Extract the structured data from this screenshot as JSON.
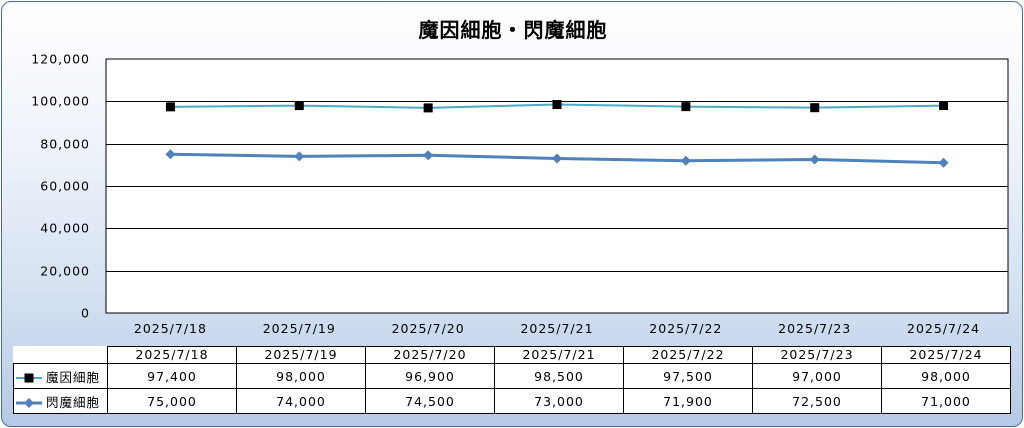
{
  "chart_data": {
    "type": "line",
    "title": "魔因細胞・閃魔細胞",
    "categories": [
      "2025/7/18",
      "2025/7/19",
      "2025/7/20",
      "2025/7/21",
      "2025/7/22",
      "2025/7/23",
      "2025/7/24"
    ],
    "series": [
      {
        "name": "魔因細胞",
        "values": [
          97400,
          98000,
          96900,
          98500,
          97500,
          97000,
          98000
        ],
        "color": "#4bacc6",
        "marker": "square",
        "marker_color": "#000000"
      },
      {
        "name": "閃魔細胞",
        "values": [
          75000,
          74000,
          74500,
          73000,
          71900,
          72500,
          71000
        ],
        "color": "#4f81bd",
        "marker": "diamond",
        "marker_color": "#4f81bd"
      }
    ],
    "ylim": [
      0,
      120000
    ],
    "yticks": [
      "0",
      "20,000",
      "40,000",
      "60,000",
      "80,000",
      "100,000",
      "120,000"
    ],
    "grid": true,
    "legend": "data-table",
    "table": {
      "rows": [
        {
          "label": "魔因細胞",
          "values": [
            "97,400",
            "98,000",
            "96,900",
            "98,500",
            "97,500",
            "97,000",
            "98,000"
          ]
        },
        {
          "label": "閃魔細胞",
          "values": [
            "75,000",
            "74,000",
            "74,500",
            "73,000",
            "71,900",
            "72,500",
            "71,000"
          ]
        }
      ]
    }
  }
}
